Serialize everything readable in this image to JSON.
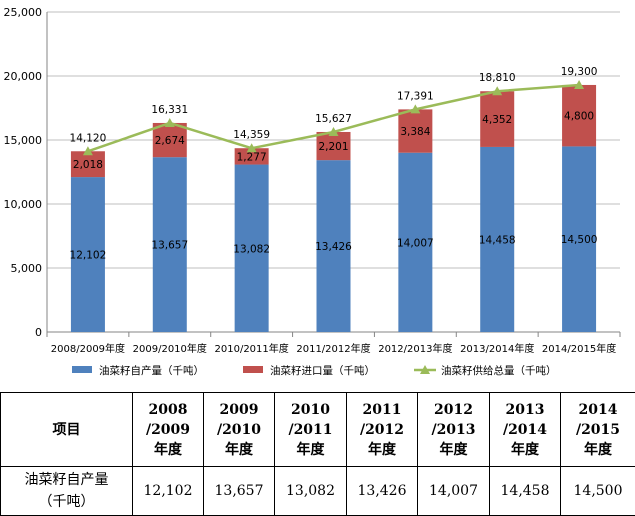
{
  "chart_data": {
    "type": "bar",
    "stacked": true,
    "categories": [
      "2008/2009年度",
      "2009/2010年度",
      "2010/2011年度",
      "2011/2012年度",
      "2012/2013年度",
      "2013/2014年度",
      "2014/2015年度"
    ],
    "series": [
      {
        "name": "油菜籽自产量（千吨）",
        "type": "bar",
        "color": "#4f81bd",
        "values": [
          12102,
          13657,
          13082,
          13426,
          14007,
          14458,
          14500
        ],
        "labels": [
          "12,102",
          "13,657",
          "13,082",
          "13,426",
          "14,007",
          "14,458",
          "14,500"
        ]
      },
      {
        "name": "油菜籽进口量（千吨）",
        "type": "bar",
        "color": "#c0504d",
        "values": [
          2018,
          2674,
          1277,
          2201,
          3384,
          4352,
          4800
        ],
        "labels": [
          "2,018",
          "2,674",
          "1,277",
          "2,201",
          "3,384",
          "4,352",
          "4,800"
        ]
      },
      {
        "name": "油菜籽供给总量（千吨）",
        "type": "line",
        "color": "#9bbb59",
        "values": [
          14120,
          16331,
          14359,
          15627,
          17391,
          18810,
          19300
        ],
        "labels": [
          "14,120",
          "16,331",
          "14,359",
          "15,627",
          "17,391",
          "18,810",
          "19,300"
        ]
      }
    ],
    "ylim": [
      0,
      25000
    ],
    "yticks": [
      0,
      5000,
      10000,
      15000,
      20000,
      25000
    ],
    "ytick_labels": [
      "0",
      "5,000",
      "10,000",
      "15,000",
      "20,000",
      "25,000"
    ],
    "grid": true,
    "legend": "bottom"
  },
  "table": {
    "header_label": "项目",
    "columns": [
      [
        "2008",
        "/2009",
        "年度"
      ],
      [
        "2009",
        "/2010",
        "年度"
      ],
      [
        "2010",
        "/2011",
        "年度"
      ],
      [
        "2011",
        "/2012",
        "年度"
      ],
      [
        "2012",
        "/2013",
        "年度"
      ],
      [
        "2013",
        "/2014",
        "年度"
      ],
      [
        "2014",
        "/2015",
        "年度"
      ]
    ],
    "row_label": [
      "油菜籽自产量",
      "（千吨）"
    ],
    "row_values": [
      "12,102",
      "13,657",
      "13,082",
      "13,426",
      "14,007",
      "14,458",
      "14,500"
    ]
  }
}
